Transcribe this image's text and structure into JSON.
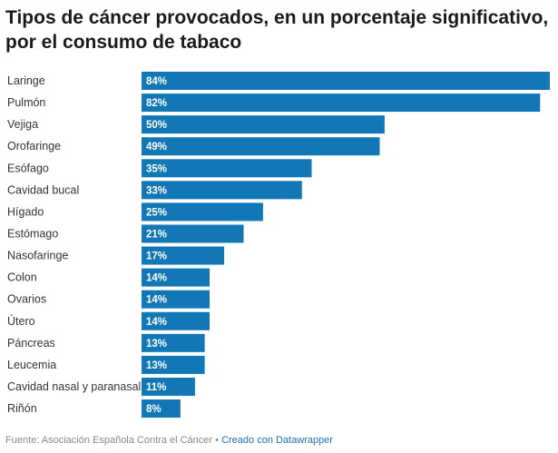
{
  "chart_data": {
    "type": "bar",
    "orientation": "horizontal",
    "title": "Tipos de cáncer provocados, en un porcentaje significativo, por el consumo de tabaco",
    "categories": [
      "Laringe",
      "Pulmón",
      "Vejiga",
      "Orofaringe",
      "Esófago",
      "Cavidad bucal",
      "Hígado",
      "Estómago",
      "Nasofaringe",
      "Colon",
      "Ovarios",
      "Útero",
      "Páncreas",
      "Leucemia",
      "Cavidad nasal y paranasal",
      "Riñón"
    ],
    "values": [
      84,
      82,
      50,
      49,
      35,
      33,
      25,
      21,
      17,
      14,
      14,
      14,
      13,
      13,
      11,
      8
    ],
    "value_labels": [
      "84%",
      "82%",
      "50%",
      "49%",
      "35%",
      "33%",
      "25%",
      "21%",
      "17%",
      "14%",
      "14%",
      "14%",
      "13%",
      "13%",
      "11%",
      "8%"
    ],
    "xlim": [
      0,
      84
    ],
    "unit": "%",
    "bar_color": "#1178b5",
    "grid": false,
    "legend": "none"
  },
  "footer": {
    "source": "Fuente: Asociación Española Contra el Cáncer",
    "separator": "•",
    "credit": "Creado con Datawrapper"
  }
}
